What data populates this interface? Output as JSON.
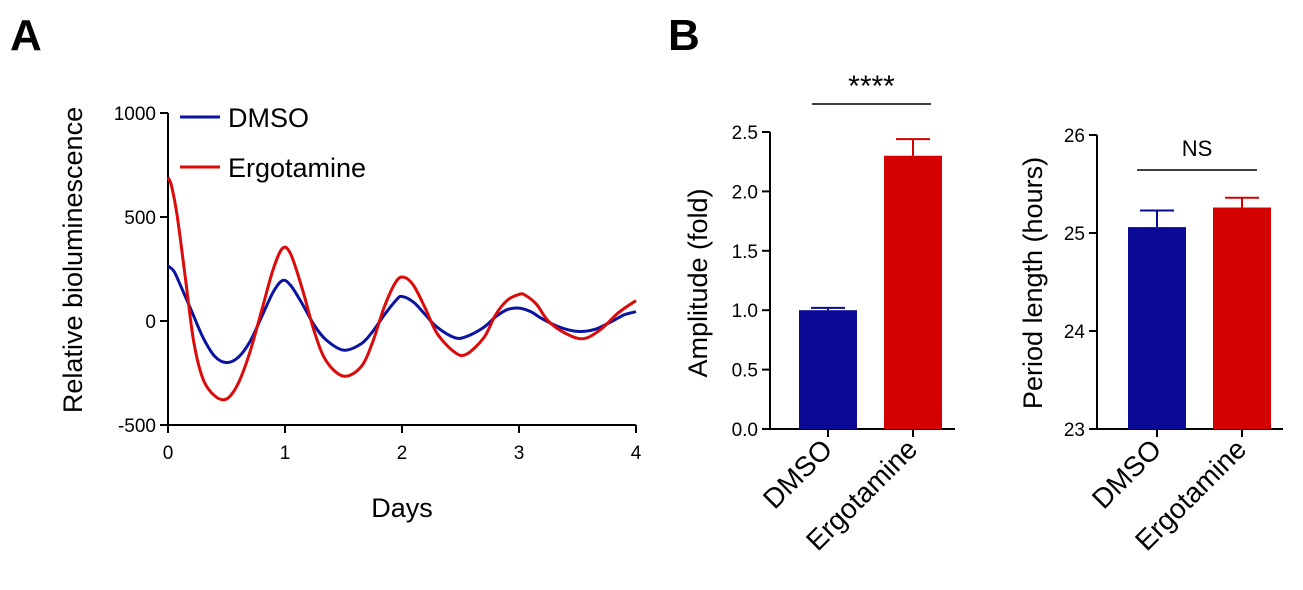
{
  "panels": {
    "a": "A",
    "b": "B"
  },
  "chart_data": [
    {
      "type": "line",
      "panel": "A",
      "xlabel": "Days",
      "ylabel": "Relative bioluminescence",
      "xlim": [
        0,
        4
      ],
      "ylim": [
        -500,
        1000
      ],
      "xticks": [
        0,
        1,
        2,
        3,
        4
      ],
      "yticks": [
        -500,
        0,
        500,
        1000
      ],
      "legend_position": "top-left",
      "grid": false,
      "series": [
        {
          "name": "DMSO",
          "color": "#0a14a0",
          "x": [
            0,
            0.05,
            0.1,
            0.2,
            0.3,
            0.4,
            0.5,
            0.6,
            0.7,
            0.8,
            0.9,
            0.98,
            1.05,
            1.15,
            1.25,
            1.35,
            1.5,
            1.65,
            1.75,
            1.85,
            1.95,
            2.0,
            2.1,
            2.2,
            2.3,
            2.45,
            2.55,
            2.7,
            2.8,
            2.9,
            3.0,
            3.1,
            3.2,
            3.35,
            3.5,
            3.65,
            3.8,
            3.9,
            4.0
          ],
          "y": [
            265,
            240,
            180,
            50,
            -80,
            -170,
            -200,
            -175,
            -100,
            20,
            140,
            195,
            170,
            80,
            -20,
            -90,
            -140,
            -110,
            -50,
            30,
            100,
            118,
            90,
            30,
            -30,
            -80,
            -75,
            -30,
            20,
            55,
            62,
            45,
            10,
            -30,
            -50,
            -40,
            0,
            30,
            45
          ]
        },
        {
          "name": "Ergotamine",
          "color": "#dd0a0a",
          "x": [
            0,
            0.03,
            0.08,
            0.15,
            0.22,
            0.3,
            0.4,
            0.5,
            0.6,
            0.7,
            0.8,
            0.9,
            0.98,
            1.05,
            1.15,
            1.25,
            1.35,
            1.5,
            1.65,
            1.75,
            1.85,
            1.95,
            2.02,
            2.1,
            2.2,
            2.3,
            2.45,
            2.55,
            2.7,
            2.8,
            2.9,
            3.0,
            3.05,
            3.15,
            3.25,
            3.4,
            3.55,
            3.7,
            3.85,
            4.0
          ],
          "y": [
            690,
            650,
            500,
            200,
            -100,
            -280,
            -360,
            -375,
            -300,
            -150,
            50,
            250,
            350,
            320,
            150,
            -50,
            -190,
            -265,
            -220,
            -100,
            70,
            190,
            210,
            170,
            60,
            -60,
            -150,
            -160,
            -80,
            30,
            100,
            128,
            125,
            80,
            0,
            -60,
            -85,
            -40,
            40,
            98
          ]
        }
      ]
    },
    {
      "type": "bar",
      "panel": "B",
      "ylabel": "Amplitude (fold)",
      "ylim": [
        0,
        2.5
      ],
      "yticks": [
        "0.0",
        "0.5",
        "1.0",
        "1.5",
        "2.0",
        "2.5"
      ],
      "categories": [
        "DMSO",
        "Ergotamine"
      ],
      "values": [
        1.0,
        2.3
      ],
      "errors": [
        0.02,
        0.14
      ],
      "colors": [
        "#0a0a96",
        "#d40000"
      ],
      "significance": "****"
    },
    {
      "type": "bar",
      "panel": "B",
      "ylabel": "Period length (hours)",
      "ylim": [
        23,
        26
      ],
      "yticks": [
        "23",
        "24",
        "25",
        "26"
      ],
      "categories": [
        "DMSO",
        "Ergotamine"
      ],
      "values": [
        25.06,
        25.26
      ],
      "errors": [
        0.17,
        0.1
      ],
      "colors": [
        "#0a0a96",
        "#d40000"
      ],
      "significance": "NS"
    }
  ]
}
